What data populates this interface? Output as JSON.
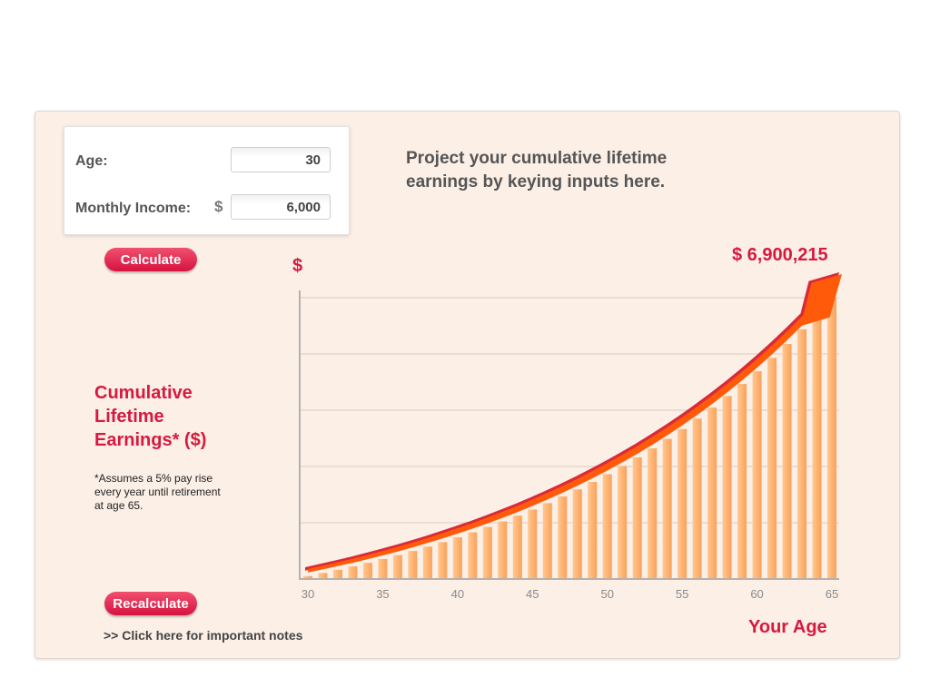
{
  "inputs": {
    "age_label": "Age:",
    "age_value": "30",
    "income_label": "Monthly Income:",
    "currency_symbol": "$",
    "income_value": "6,000"
  },
  "buttons": {
    "calculate": "Calculate",
    "recalculate": "Recalculate"
  },
  "intro_text": "Project your cumulative lifetime earnings by keying inputs here.",
  "side": {
    "title": "Cumulative Lifetime Earnings* ($)",
    "note": "*Assumes a 5% pay rise every year until retirement at age 65."
  },
  "notes_link": ">> Click here for important notes",
  "colors": {
    "accent": "#d7193f",
    "bar": "#ffb777",
    "arrow": "#ff5a0a",
    "arrow_shadow": "#d92a3a",
    "panel_bg": "#fbefe6",
    "grid": "#e3d2c6"
  },
  "chart_data": {
    "type": "bar",
    "total_label": "$ 6,900,215",
    "ylabel": "$",
    "xlabel": "Your Age",
    "x_ticks": [
      30,
      35,
      40,
      45,
      50,
      55,
      60,
      65
    ],
    "ylim": [
      0,
      6900215
    ],
    "grid": "horizontal",
    "categories": [
      30,
      31,
      32,
      33,
      34,
      35,
      36,
      37,
      38,
      39,
      40,
      41,
      42,
      43,
      44,
      45,
      46,
      47,
      48,
      49,
      50,
      51,
      52,
      53,
      54,
      55,
      56,
      57,
      58,
      59,
      60,
      61,
      62,
      63,
      64,
      65
    ],
    "values": [
      72000,
      147600,
      226980,
      310329,
      397845,
      489737,
      586224,
      687535,
      793912,
      905608,
      1022888,
      1146033,
      1275334,
      1411101,
      1553656,
      1703339,
      1860506,
      2025531,
      2198808,
      2380748,
      2571785,
      2772374,
      2982993,
      3204143,
      3436350,
      3680167,
      3936175,
      4204984,
      4487233,
      4783595,
      5094775,
      5421513,
      5764589,
      6124818,
      6503059,
      6900215
    ],
    "series": [
      {
        "name": "Cumulative Lifetime Earnings",
        "values": [
          72000,
          147600,
          226980,
          310329,
          397845,
          489737,
          586224,
          687535,
          793912,
          905608,
          1022888,
          1146033,
          1275334,
          1411101,
          1553656,
          1703339,
          1860506,
          2025531,
          2198808,
          2380748,
          2571785,
          2772374,
          2982993,
          3204143,
          3436350,
          3680167,
          3936175,
          4204984,
          4487233,
          4783595,
          5094775,
          5421513,
          5764589,
          6124818,
          6503059,
          6900215
        ]
      }
    ]
  }
}
